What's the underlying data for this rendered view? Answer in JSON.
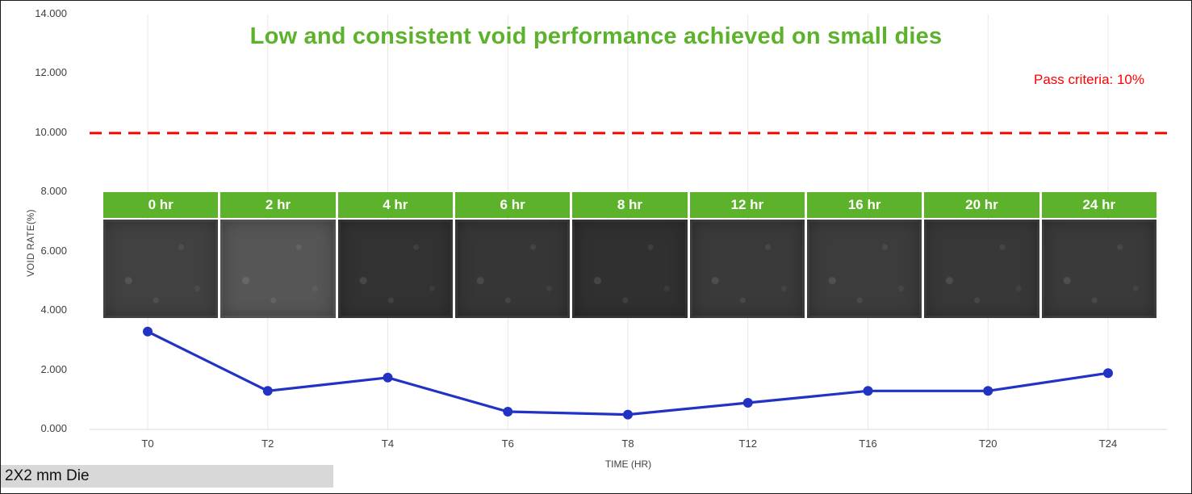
{
  "title": "Low and consistent void performance achieved on small dies",
  "annotations": {
    "pass_criteria": "Pass criteria: 10%"
  },
  "footer": {
    "die_label": "2X2 mm Die"
  },
  "colors": {
    "accent_green": "#5cb32b",
    "pass_red": "#ff0000",
    "line_blue": "#2233c4",
    "grid": "#e8e8e8",
    "axis_line": "#d9d9d9",
    "axis_text": "#404040"
  },
  "chart_data": {
    "type": "line",
    "title": "Low and consistent void performance achieved on small dies",
    "xlabel": "TIME (HR)",
    "ylabel": "VOID RATE(%)",
    "ylim": [
      0,
      14
    ],
    "y_ticks": [
      0,
      2,
      4,
      6,
      8,
      10,
      12,
      14
    ],
    "y_tick_labels": [
      "0.000",
      "2.000",
      "4.000",
      "6.000",
      "8.000",
      "10.000",
      "12.000",
      "14.000"
    ],
    "categories": [
      "T0",
      "T2",
      "T4",
      "T6",
      "T8",
      "T12",
      "T16",
      "T20",
      "T24"
    ],
    "series": [
      {
        "name": "Void rate (%)",
        "values": [
          3.3,
          1.3,
          1.75,
          0.6,
          0.5,
          0.9,
          1.3,
          1.3,
          1.9
        ]
      }
    ],
    "pass_line": {
      "value": 10,
      "label": "Pass criteria: 10%"
    },
    "grid": "vertical",
    "legend": "none",
    "image_strip": {
      "frames": [
        {
          "label": "0 hr",
          "tone": "#414141"
        },
        {
          "label": "2 hr",
          "tone": "#565656"
        },
        {
          "label": "4 hr",
          "tone": "#323232"
        },
        {
          "label": "6 hr",
          "tone": "#363636"
        },
        {
          "label": "8 hr",
          "tone": "#303030"
        },
        {
          "label": "12 hr",
          "tone": "#3a3a3a"
        },
        {
          "label": "16 hr",
          "tone": "#3c3c3c"
        },
        {
          "label": "20 hr",
          "tone": "#383838"
        },
        {
          "label": "24 hr",
          "tone": "#3a3a3a"
        }
      ]
    }
  }
}
